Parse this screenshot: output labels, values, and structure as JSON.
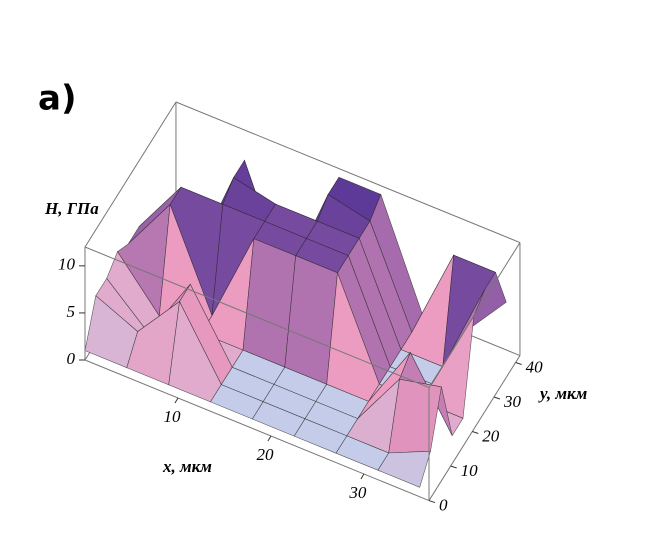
{
  "panel_label": "a)",
  "chart_data": {
    "type": "surface3d",
    "xlabel": "x, мкм",
    "ylabel": "y, мкм",
    "zlabel": "H, ГПа",
    "x": [
      0,
      4.5,
      9,
      13.5,
      18,
      22.5,
      27,
      31.5,
      36
    ],
    "y": [
      0,
      5,
      10,
      15,
      20,
      25,
      30,
      35,
      40
    ],
    "z": [
      [
        1,
        1,
        1,
        1,
        1,
        1,
        1,
        1,
        1
      ],
      [
        5,
        3,
        8,
        1,
        1,
        1,
        1,
        1,
        3
      ],
      [
        5,
        1,
        8,
        1,
        1,
        1,
        1,
        7,
        8
      ],
      [
        6,
        1,
        1,
        1,
        1,
        1,
        1,
        8,
        1
      ],
      [
        5,
        11,
        1,
        11,
        11,
        11,
        1,
        1,
        1
      ],
      [
        5,
        11,
        11,
        11,
        11,
        11,
        1,
        1,
        10
      ],
      [
        4,
        1,
        12,
        11,
        11,
        11,
        1,
        1,
        11
      ],
      [
        1,
        1,
        12,
        1,
        12,
        11,
        1,
        11,
        11
      ],
      [
        1,
        1,
        1,
        1,
        12,
        12,
        1,
        1,
        6
      ]
    ],
    "xlim": [
      0,
      37
    ],
    "ylim": [
      0,
      42
    ],
    "zlim": [
      0,
      12
    ],
    "xticks": [
      10,
      20,
      30
    ],
    "yticks": [
      0,
      10,
      20,
      30,
      40
    ],
    "zticks": [
      0,
      5,
      10
    ],
    "colors": [
      "#bcd6f2",
      "#ec9cc0",
      "#5e3a98"
    ],
    "mesh": true
  }
}
